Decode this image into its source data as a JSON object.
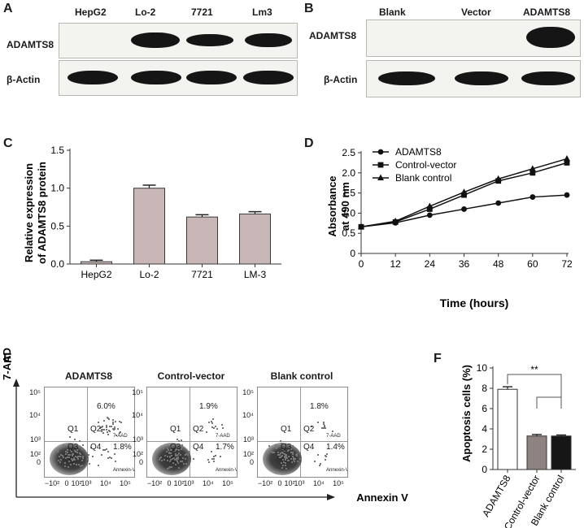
{
  "panels": {
    "a": "A",
    "b": "B",
    "c": "C",
    "d": "D",
    "e": "E",
    "f": "F"
  },
  "blot_a": {
    "lanes": [
      "HepG2",
      "Lo-2",
      "7721",
      "Lm3"
    ],
    "rows": [
      "ADAMTS8",
      "β-Actin"
    ],
    "levels": {
      "ADAMTS8": [
        0,
        1.0,
        0.62,
        0.66
      ],
      "β-Actin": [
        1,
        1,
        1,
        1
      ]
    }
  },
  "blot_b": {
    "lanes": [
      "Blank",
      "Vector",
      "ADAMTS8"
    ],
    "rows": [
      "ADAMTS8",
      "β-Actin"
    ],
    "levels": {
      "ADAMTS8": [
        0,
        0,
        1
      ],
      "β-Actin": [
        1,
        1,
        1
      ]
    }
  },
  "chart_data": [
    {
      "type": "bar",
      "categories": [
        "HepG2",
        "Lo-2",
        "7721",
        "LM-3"
      ],
      "values": [
        0.03,
        1.0,
        0.62,
        0.66
      ],
      "errors": [
        0.02,
        0.04,
        0.03,
        0.03
      ],
      "ylabel": "Relative expression of ADAMTS8 protein",
      "ylim": [
        0,
        1.5
      ],
      "yticks": [
        "0.0",
        "0.5",
        "1.0",
        "1.5"
      ],
      "bar_color": "#c9b7b7"
    },
    {
      "type": "line",
      "x": [
        0,
        12,
        24,
        36,
        48,
        60,
        72
      ],
      "xticks": [
        "0",
        "12",
        "24",
        "36",
        "48",
        "60",
        "72"
      ],
      "xlabel": "Time (hours)",
      "ylabel": "Absorbance at 490 nm",
      "ylim": [
        0,
        2.5
      ],
      "yticks": [
        "0",
        "0.5",
        "1.0",
        "1.5",
        "2.0",
        "2.5"
      ],
      "legend": "top-left",
      "series": [
        {
          "name": "ADAMTS8",
          "marker": "circle",
          "values": [
            0.66,
            0.76,
            0.95,
            1.1,
            1.25,
            1.4,
            1.45
          ]
        },
        {
          "name": "Control-vector",
          "marker": "square",
          "values": [
            0.66,
            0.78,
            1.1,
            1.45,
            1.8,
            2.0,
            2.25
          ]
        },
        {
          "name": "Blank control",
          "marker": "triangle",
          "values": [
            0.66,
            0.8,
            1.17,
            1.52,
            1.85,
            2.1,
            2.35
          ]
        }
      ]
    },
    {
      "type": "bar",
      "categories": [
        "ADAMTS8",
        "Control-vector",
        "Blank control"
      ],
      "values": [
        7.9,
        3.3,
        3.3
      ],
      "errors": [
        0.25,
        0.15,
        0.1
      ],
      "colors": [
        "#ffffff",
        "#8f8382",
        "#161616"
      ],
      "ylabel": "Apoptosis cells (%)",
      "ylim": [
        0,
        10
      ],
      "yticks": [
        "0",
        "2",
        "4",
        "6",
        "8",
        "10"
      ],
      "significance": "**"
    }
  ],
  "flow": {
    "y_axis": "7-AAD",
    "x_axis": "Annexin V",
    "y_ticks": [
      "10⁵",
      "10⁴",
      "10³",
      "10²",
      "0"
    ],
    "x_ticks": [
      "−10²",
      "0",
      "10²",
      "10³",
      "10⁴",
      "10⁵"
    ],
    "quadrants": [
      "Q1",
      "Q2",
      "Q3",
      "Q4"
    ],
    "q2_tag": "7-AAD",
    "q4_tag": "Annexin-V",
    "plots": [
      {
        "title": "ADAMTS8",
        "q2_pct": "6.0%",
        "q4_pct": "1.8%",
        "q2_fraction": 0.06,
        "q4_fraction": 0.018
      },
      {
        "title": "Control-vector",
        "q2_pct": "1.9%",
        "q4_pct": "1.7%",
        "q2_fraction": 0.019,
        "q4_fraction": 0.017
      },
      {
        "title": "Blank control",
        "q2_pct": "1.8%",
        "q4_pct": "1.4%",
        "q2_fraction": 0.018,
        "q4_fraction": 0.014
      }
    ]
  }
}
